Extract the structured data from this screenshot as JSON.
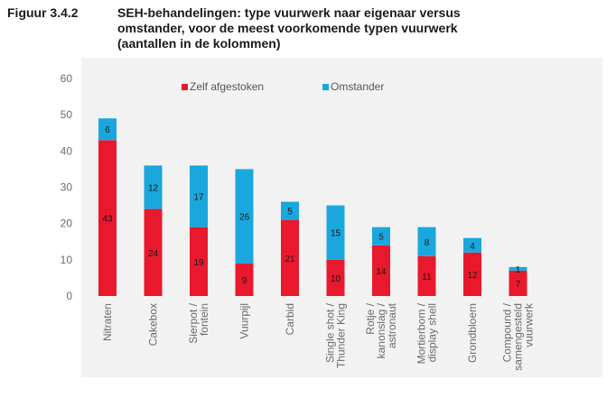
{
  "figure": {
    "label": "Figuur 3.4.2",
    "title_lines": [
      "SEH-behandelingen: type vuurwerk naar eigenaar versus",
      "omstander, voor de meest voorkomende typen vuurwerk",
      "(aantallen in de kolommen)"
    ]
  },
  "chart_data": {
    "type": "bar",
    "stacked": true,
    "categories": [
      [
        "Nitraten"
      ],
      [
        "Cakebox"
      ],
      [
        "Sierpot /",
        "fontein"
      ],
      [
        "Vuurpijl"
      ],
      [
        "Carbid"
      ],
      [
        "Single shot /",
        "Thunder King"
      ],
      [
        "Rotje /",
        "kanonslag /",
        "astronaut"
      ],
      [
        "Mortierbom /",
        "display shell"
      ],
      [
        "Grondbloem"
      ],
      [
        "Compound /",
        "samengesteld",
        "vuurwerk"
      ]
    ],
    "series": [
      {
        "name": "Zelf afgestoken",
        "color": "#e8192c",
        "values": [
          43,
          24,
          19,
          9,
          21,
          10,
          14,
          11,
          12,
          7
        ]
      },
      {
        "name": "Omstander",
        "color": "#1aa7dd",
        "values": [
          6,
          12,
          17,
          26,
          5,
          15,
          5,
          8,
          4,
          1
        ]
      }
    ],
    "y_ticks": [
      0,
      10,
      20,
      30,
      40,
      50,
      60
    ],
    "ylim": [
      0,
      60
    ],
    "legend_position": "top-center",
    "grid": false,
    "background": "#f2f2f2"
  }
}
